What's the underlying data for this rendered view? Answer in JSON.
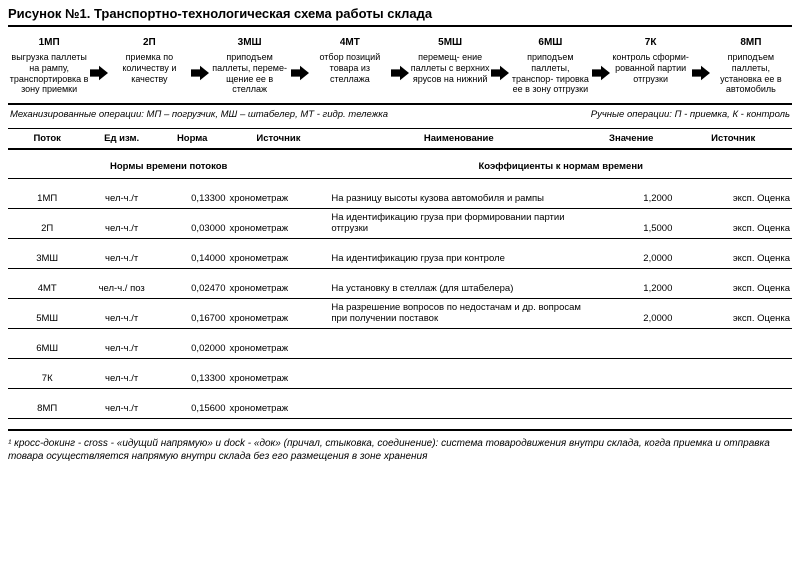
{
  "title": "Рисунок №1. Транспортно-технологическая схема работы склада",
  "steps": [
    {
      "code": "1МП",
      "text": "выгрузка паллеты на рампу, транспортировка в зону приемки"
    },
    {
      "code": "2П",
      "text": "приемка по количеству и качеству"
    },
    {
      "code": "3МШ",
      "text": "приподъем паллеты, переме- щение ее в стеллаж"
    },
    {
      "code": "4МТ",
      "text": "отбор позиций товара из стеллажа"
    },
    {
      "code": "5МШ",
      "text": "перемещ- ение паллеты с верхних ярусов на нижний"
    },
    {
      "code": "6МШ",
      "text": "приподъем паллеты, транспор- тировка ее в зону отгрузки"
    },
    {
      "code": "7К",
      "text": "контроль сформи- рованной партии отгрузки"
    },
    {
      "code": "8МП",
      "text": "приподъем паллеты, установка ее в автомобиль"
    }
  ],
  "legend": {
    "left": "Механизированные операции: МП – погрузчик, МШ – штабелер, МТ - гидр. тележка",
    "right": "Ручные операции: П - приемка, К - контроль"
  },
  "section_headers": {
    "left": "Нормы времени потоков",
    "right": "Коэффициенты к нормам времени"
  },
  "table_headers": {
    "flow": "Поток",
    "unit": "Ед изм.",
    "norm": "Норма",
    "src": "Источник",
    "name": "Наименование",
    "value": "Значение",
    "src2": "Источник"
  },
  "left_rows": [
    {
      "flow": "1МП",
      "unit": "чел-ч./т",
      "norm": "0,13300",
      "src": "хронометраж"
    },
    {
      "flow": "2П",
      "unit": "чел-ч./т",
      "norm": "0,03000",
      "src": "хронометраж"
    },
    {
      "flow": "3МШ",
      "unit": "чел-ч./т",
      "norm": "0,14000",
      "src": "хронометраж"
    },
    {
      "flow": "4МТ",
      "unit": "чел-ч./ поз",
      "norm": "0,02470",
      "src": "хронометраж"
    },
    {
      "flow": "5МШ",
      "unit": "чел-ч./т",
      "norm": "0,16700",
      "src": "хронометраж"
    },
    {
      "flow": "6МШ",
      "unit": "чел-ч./т",
      "norm": "0,02000",
      "src": "хронометраж"
    },
    {
      "flow": "7К",
      "unit": "чел-ч./т",
      "norm": "0,13300",
      "src": "хронометраж"
    },
    {
      "flow": "8МП",
      "unit": "чел-ч./т",
      "norm": "0,15600",
      "src": "хронометраж"
    }
  ],
  "right_rows": [
    {
      "name": "На разницу высоты кузова автомобиля и рампы",
      "value": "1,2000",
      "src": "эксп. Оценка"
    },
    {
      "name": "На идентификацию груза при формировании партии отгрузки",
      "value": "1,5000",
      "src": "эксп. Оценка"
    },
    {
      "name": "На идентификацию груза при контроле",
      "value": "2,0000",
      "src": "эксп. Оценка"
    },
    {
      "name": "На установку в стеллаж (для штабелера)",
      "value": "1,2000",
      "src": "эксп. Оценка"
    },
    {
      "name": "На разрешение вопросов по недостачам и др. вопросам при получении поставок",
      "value": "2,0000",
      "src": "эксп. Оценка"
    },
    {
      "name": "",
      "value": "",
      "src": ""
    },
    {
      "name": "",
      "value": "",
      "src": ""
    },
    {
      "name": "",
      "value": "",
      "src": ""
    }
  ],
  "footnote": "¹ кросс-докинг -  cross - «идущий напрямую» и dock - «док» (причал, стыковка, соединение): система товародвижения внутри склада, когда приемка и отправка товара осуществляется напрямую внутри склада без его размещения в зоне хранения",
  "arrow_color": "#000000",
  "colwidths": {
    "flow": "10%",
    "unit": "9%",
    "norm": "9%",
    "src1": "13%",
    "name": "33%",
    "value": "11%",
    "src2": "15%"
  }
}
